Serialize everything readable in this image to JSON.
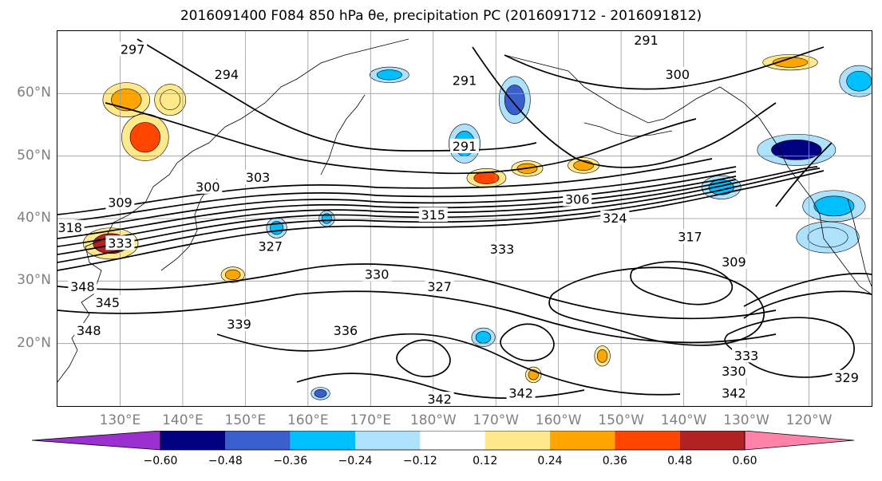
{
  "title": "2016091400 F084 850 hPa θe, precipitation PC (2016091712 - 2016091812)",
  "colors": {
    "coast": "#000000",
    "contour": "#000000",
    "grid": "#999999"
  },
  "chart_data": {
    "type": "contour_map",
    "title": "2016091400 F084 850 hPa θe, precipitation PC (2016091712 - 2016091812)",
    "projection": "PlateCarree",
    "lon_range": [
      120,
      250
    ],
    "lat_range": [
      10,
      70
    ],
    "lon_ticks": [
      "130°E",
      "140°E",
      "150°E",
      "160°E",
      "170°E",
      "180°W",
      "170°W",
      "160°W",
      "150°W",
      "140°W",
      "130°W",
      "120°W"
    ],
    "lon_tick_values": [
      130,
      140,
      150,
      160,
      170,
      180,
      190,
      200,
      210,
      220,
      230,
      240
    ],
    "lat_ticks": [
      "20°N",
      "30°N",
      "40°N",
      "50°N",
      "60°N"
    ],
    "lat_tick_values": [
      20,
      30,
      40,
      50,
      60
    ],
    "grid": true,
    "theta_e_contour_labels": [
      {
        "text": "297",
        "lon": 132,
        "lat": 67
      },
      {
        "text": "294",
        "lon": 147,
        "lat": 63
      },
      {
        "text": "291",
        "lon": 185,
        "lat": 62
      },
      {
        "text": "291",
        "lon": 214,
        "lat": 68.5
      },
      {
        "text": "300",
        "lon": 219,
        "lat": 63
      },
      {
        "text": "291",
        "lon": 185,
        "lat": 51.5
      },
      {
        "text": "303",
        "lon": 152,
        "lat": 46.5
      },
      {
        "text": "300",
        "lon": 144,
        "lat": 45
      },
      {
        "text": "309",
        "lon": 130,
        "lat": 42.5
      },
      {
        "text": "306",
        "lon": 203,
        "lat": 43
      },
      {
        "text": "315",
        "lon": 180,
        "lat": 40.5
      },
      {
        "text": "324",
        "lon": 209,
        "lat": 40
      },
      {
        "text": "318",
        "lon": 122,
        "lat": 38.5
      },
      {
        "text": "333",
        "lon": 130,
        "lat": 36
      },
      {
        "text": "327",
        "lon": 154,
        "lat": 35.5
      },
      {
        "text": "317",
        "lon": 221,
        "lat": 37
      },
      {
        "text": "333",
        "lon": 191,
        "lat": 35
      },
      {
        "text": "309",
        "lon": 228,
        "lat": 33
      },
      {
        "text": "330",
        "lon": 171,
        "lat": 31
      },
      {
        "text": "327",
        "lon": 181,
        "lat": 29
      },
      {
        "text": "348",
        "lon": 124,
        "lat": 29
      },
      {
        "text": "345",
        "lon": 128,
        "lat": 26.5
      },
      {
        "text": "339",
        "lon": 149,
        "lat": 23
      },
      {
        "text": "348",
        "lon": 125,
        "lat": 22
      },
      {
        "text": "336",
        "lon": 166,
        "lat": 22
      },
      {
        "text": "333",
        "lon": 230,
        "lat": 18
      },
      {
        "text": "330",
        "lon": 228,
        "lat": 15.5
      },
      {
        "text": "342",
        "lon": 181,
        "lat": 11
      },
      {
        "text": "342",
        "lon": 194,
        "lat": 12
      },
      {
        "text": "342",
        "lon": 228,
        "lat": 12
      },
      {
        "text": "329",
        "lon": 246,
        "lat": 14.5
      }
    ],
    "precip_pc_colorbar": {
      "boundaries": [
        -0.6,
        -0.48,
        -0.36,
        -0.24,
        -0.12,
        0.12,
        0.24,
        0.36,
        0.48,
        0.6
      ],
      "tick_labels": [
        "−0.60",
        "−0.48",
        "−0.36",
        "−0.24",
        "−0.12",
        "0.12",
        "0.24",
        "0.36",
        "0.48",
        "0.60"
      ],
      "colors": [
        "#9b30d0",
        "#000080",
        "#3a5fcd",
        "#00bfff",
        "#aee1fb",
        "#ffffff",
        "#ffe98a",
        "#ffa500",
        "#ff4500",
        "#b22222",
        "#ff82ab"
      ],
      "extend": "both"
    },
    "precip_pc_patches": [
      {
        "lon": 131,
        "lat": 59,
        "rx": 3,
        "ry": 2.2,
        "value": 0.3
      },
      {
        "lon": 134,
        "lat": 53,
        "rx": 3,
        "ry": 3,
        "value": 0.4
      },
      {
        "lon": 138,
        "lat": 59,
        "rx": 2,
        "ry": 2,
        "value": 0.2
      },
      {
        "lon": 128.5,
        "lat": 36,
        "rx": 3.5,
        "ry": 2,
        "value": 0.5
      },
      {
        "lon": 185,
        "lat": 52,
        "rx": 2,
        "ry": 2.5,
        "value": -0.3
      },
      {
        "lon": 193,
        "lat": 59,
        "rx": 2,
        "ry": 3,
        "value": -0.45
      },
      {
        "lon": 173,
        "lat": 63,
        "rx": 2.5,
        "ry": 1,
        "value": -0.3
      },
      {
        "lon": 188.5,
        "lat": 46.5,
        "rx": 2.5,
        "ry": 1.2,
        "value": 0.4
      },
      {
        "lon": 195,
        "lat": 48,
        "rx": 2,
        "ry": 1,
        "value": 0.3
      },
      {
        "lon": 204,
        "lat": 48.5,
        "rx": 2,
        "ry": 1,
        "value": 0.3
      },
      {
        "lon": 226,
        "lat": 45,
        "rx": 2.5,
        "ry": 1.5,
        "value": -0.3
      },
      {
        "lon": 238,
        "lat": 51,
        "rx": 5,
        "ry": 2,
        "value": -0.5
      },
      {
        "lon": 244,
        "lat": 42,
        "rx": 4,
        "ry": 2,
        "value": -0.3
      },
      {
        "lon": 243,
        "lat": 37,
        "rx": 4,
        "ry": 2,
        "value": -0.2
      },
      {
        "lon": 248,
        "lat": 62,
        "rx": 2.5,
        "ry": 2,
        "value": -0.3
      },
      {
        "lon": 237,
        "lat": 65,
        "rx": 3.5,
        "ry": 1,
        "value": 0.3
      },
      {
        "lon": 155,
        "lat": 38.5,
        "rx": 1.3,
        "ry": 1.3,
        "value": -0.3
      },
      {
        "lon": 148,
        "lat": 31,
        "rx": 1.5,
        "ry": 1,
        "value": 0.3
      },
      {
        "lon": 163,
        "lat": 40,
        "rx": 1,
        "ry": 1,
        "value": -0.25
      },
      {
        "lon": 207,
        "lat": 18,
        "rx": 1,
        "ry": 1.3,
        "value": 0.3
      },
      {
        "lon": 188,
        "lat": 21,
        "rx": 1.5,
        "ry": 1.2,
        "value": -0.3
      },
      {
        "lon": 162,
        "lat": 12,
        "rx": 1.2,
        "ry": 0.8,
        "value": -0.4
      },
      {
        "lon": 196,
        "lat": 15,
        "rx": 1,
        "ry": 1,
        "value": 0.3
      }
    ]
  }
}
